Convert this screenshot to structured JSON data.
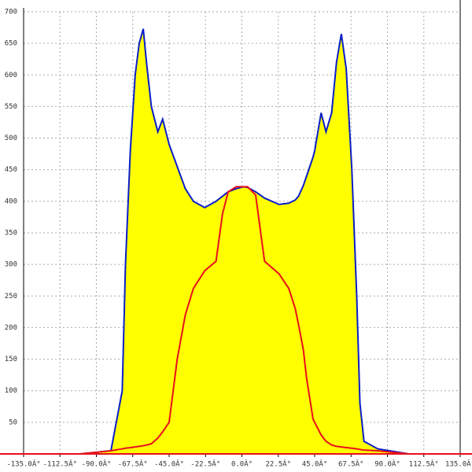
{
  "chart_data": {
    "type": "line",
    "x": [
      -135,
      -100,
      -81,
      -74,
      -72,
      -69,
      -66,
      -63.5,
      -61,
      -59,
      -56,
      -52,
      -49,
      -45,
      -40,
      -35,
      -30,
      -23,
      -16,
      -12,
      -8.5,
      -3.5,
      1,
      3.5,
      8.5,
      14,
      23,
      29,
      33,
      35,
      38,
      40,
      44,
      45,
      49,
      52,
      55.5,
      58.5,
      61.5,
      64.5,
      68,
      71,
      73,
      75.5,
      84,
      103,
      135
    ],
    "series": [
      {
        "color": "#0a1ec8",
        "fill": "#ffff00",
        "values": [
          0,
          0,
          5,
          100,
          300,
          480,
          600,
          650,
          673,
          620,
          550,
          510,
          530,
          490,
          455,
          420,
          400,
          390,
          400,
          408,
          415,
          420,
          423,
          422,
          415,
          405,
          395,
          397,
          402,
          408,
          425,
          440,
          470,
          480,
          540,
          510,
          540,
          620,
          665,
          610,
          450,
          250,
          80,
          20,
          8,
          0,
          0
        ]
      },
      {
        "color": "#e8101c",
        "values": [
          0,
          0,
          5,
          8,
          9,
          10,
          11,
          12,
          13,
          14,
          16,
          25,
          35,
          50,
          150,
          220,
          262,
          290,
          305,
          380,
          415,
          423,
          423,
          423,
          410,
          305,
          285,
          262,
          230,
          205,
          165,
          120,
          55,
          50,
          30,
          20,
          14,
          12,
          11,
          10,
          9,
          8,
          7,
          6,
          5,
          0,
          0
        ]
      }
    ],
    "xlim": [
      -135,
      135
    ],
    "xticks": [
      {
        "value": -135,
        "label": "-135.0Â°"
      },
      {
        "value": -112.5,
        "label": "-112.5Â°"
      },
      {
        "value": -90,
        "label": "-90.0Â°"
      },
      {
        "value": -67.5,
        "label": "-67.5Â°"
      },
      {
        "value": -45,
        "label": "-45.0Â°"
      },
      {
        "value": -22.5,
        "label": "-22.5Â°"
      },
      {
        "value": 0,
        "label": "0.0Â°"
      },
      {
        "value": 22.5,
        "label": "22.5Â°"
      },
      {
        "value": 45,
        "label": "45.0Â°"
      },
      {
        "value": 67.5,
        "label": "67.5Â°"
      },
      {
        "value": 90,
        "label": "90.0Â°"
      },
      {
        "value": 112.5,
        "label": "112.5Â°"
      },
      {
        "value": 135,
        "label": "135.0Â°"
      }
    ],
    "ylim": [
      0,
      700
    ],
    "yticks": [
      50,
      100,
      150,
      200,
      250,
      300,
      350,
      400,
      450,
      500,
      550,
      600,
      650,
      700
    ],
    "grid": true
  }
}
